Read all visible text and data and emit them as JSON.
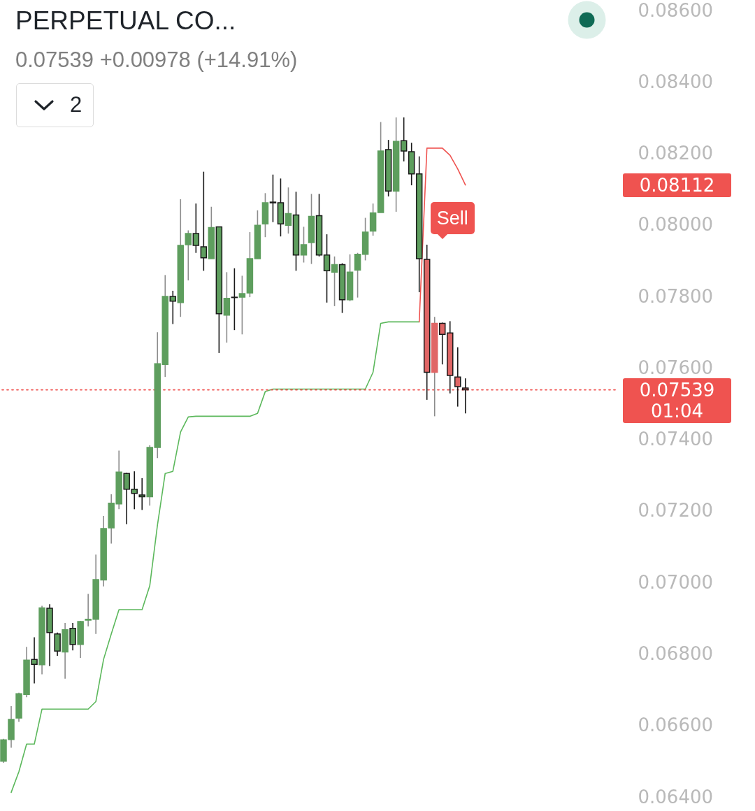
{
  "chart_data": {
    "type": "candlestick",
    "title": "PERPETUAL CO...",
    "subtitle": "0.07539 +0.00978 (+14.91%)",
    "categories": [
      null,
      null,
      null,
      null,
      null,
      null,
      null,
      null,
      null,
      null,
      null,
      null,
      null,
      null,
      null,
      null,
      null,
      null,
      null,
      null,
      null,
      null,
      null,
      null,
      null,
      null,
      null,
      null,
      null,
      null,
      null,
      null,
      null,
      null,
      null,
      null,
      null,
      null,
      null,
      null,
      null,
      null,
      null,
      null,
      null,
      null,
      null,
      null,
      null,
      null,
      null,
      null,
      null,
      null,
      null,
      null,
      null,
      null,
      null,
      null,
      null,
      null,
      null,
      null,
      null,
      null,
      null,
      null,
      null,
      null,
      null,
      null,
      null,
      null,
      null,
      null,
      null,
      null,
      null,
      null
    ],
    "ohlc": [
      [
        0.065,
        0.06563,
        0.06496,
        0.0656
      ],
      [
        0.06561,
        0.06654,
        0.06538,
        0.06617
      ],
      [
        0.06621,
        0.06692,
        0.0661,
        0.06689
      ],
      [
        0.06687,
        0.0682,
        0.06679,
        0.06783
      ],
      [
        0.06785,
        0.06847,
        0.06718,
        0.06771
      ],
      [
        0.0677,
        0.06935,
        0.06743,
        0.06929
      ],
      [
        0.06928,
        0.06939,
        0.06766,
        0.0686
      ],
      [
        0.06856,
        0.0686,
        0.06795,
        0.06808
      ],
      [
        0.06806,
        0.06887,
        0.06731,
        0.06868
      ],
      [
        0.06872,
        0.06887,
        0.0681,
        0.06827
      ],
      [
        0.06827,
        0.06893,
        0.06789,
        0.06891
      ],
      [
        0.06895,
        0.06968,
        0.06877,
        0.06897
      ],
      [
        0.06897,
        0.07078,
        0.06856,
        0.07008
      ],
      [
        0.07007,
        0.07186,
        0.06989,
        0.07151
      ],
      [
        0.07153,
        0.07247,
        0.07109,
        0.07222
      ],
      [
        0.0722,
        0.07369,
        0.07205,
        0.07309
      ],
      [
        0.07305,
        0.07307,
        0.07163,
        0.07261
      ],
      [
        0.07261,
        0.07311,
        0.07205,
        0.07249
      ],
      [
        0.07245,
        0.07292,
        0.07203,
        0.0724
      ],
      [
        0.0724,
        0.07384,
        0.07215,
        0.07378
      ],
      [
        0.07378,
        0.077,
        0.07348,
        0.07612
      ],
      [
        0.0761,
        0.0786,
        0.07575,
        0.078
      ],
      [
        0.078,
        0.07816,
        0.07723,
        0.07787
      ],
      [
        0.07783,
        0.08072,
        0.07743,
        0.07943
      ],
      [
        0.07945,
        0.07985,
        0.07845,
        0.07976
      ],
      [
        0.07976,
        0.0806,
        0.07922,
        0.07943
      ],
      [
        0.07939,
        0.08149,
        0.07872,
        0.07908
      ],
      [
        0.07906,
        0.08051,
        0.07906,
        0.07993
      ],
      [
        0.07995,
        0.07995,
        0.07642,
        0.07752
      ],
      [
        0.07748,
        0.07868,
        0.07671,
        0.07795
      ],
      [
        0.07798,
        0.07879,
        0.07706,
        0.07797
      ],
      [
        0.07798,
        0.07858,
        0.07694,
        0.07808
      ],
      [
        0.0781,
        0.0798,
        0.07798,
        0.07906
      ],
      [
        0.07906,
        0.08041,
        0.07906,
        0.07999
      ],
      [
        0.08003,
        0.08089,
        0.07966,
        0.08062
      ],
      [
        0.08064,
        0.08141,
        0.08008,
        0.08062
      ],
      [
        0.08062,
        0.0813,
        0.07968,
        0.08003
      ],
      [
        0.07999,
        0.08105,
        0.07976,
        0.08032
      ],
      [
        0.08028,
        0.08093,
        0.07872,
        0.07916
      ],
      [
        0.07916,
        0.07995,
        0.07895,
        0.07945
      ],
      [
        0.07951,
        0.08087,
        0.07891,
        0.08024
      ],
      [
        0.08026,
        0.08087,
        0.07912,
        0.07916
      ],
      [
        0.07916,
        0.07974,
        0.07783,
        0.07872
      ],
      [
        0.07868,
        0.07912,
        0.07773,
        0.07889
      ],
      [
        0.07889,
        0.07893,
        0.07754,
        0.07791
      ],
      [
        0.07791,
        0.07918,
        0.07787,
        0.07868
      ],
      [
        0.07874,
        0.07922,
        0.07797,
        0.07918
      ],
      [
        0.07918,
        0.0802,
        0.07901,
        0.0798
      ],
      [
        0.07983,
        0.0806,
        0.0797,
        0.08034
      ],
      [
        0.08035,
        0.08288,
        0.08035,
        0.08207
      ],
      [
        0.08211,
        0.08238,
        0.0808,
        0.08095
      ],
      [
        0.08095,
        0.08301,
        0.08037,
        0.08234
      ],
      [
        0.08236,
        0.08301,
        0.08178,
        0.08207
      ],
      [
        0.08205,
        0.0823,
        0.08111,
        0.08143
      ],
      [
        0.08143,
        0.08192,
        0.07812,
        0.07906
      ],
      [
        0.07904,
        0.07945,
        0.07511,
        0.07588
      ],
      [
        0.07588,
        0.07743,
        0.07465,
        0.07725
      ],
      [
        0.07725,
        0.07727,
        0.0761,
        0.07694
      ],
      [
        0.07698,
        0.07731,
        0.07529,
        0.07579
      ],
      [
        0.07575,
        0.07658,
        0.07492,
        0.07548
      ],
      [
        0.07544,
        0.07571,
        0.07473,
        0.07539
      ],
      null,
      null,
      null,
      null,
      null,
      null,
      null,
      null,
      null,
      null,
      null,
      null,
      null,
      null,
      null,
      null,
      null,
      null,
      null
    ],
    "colors": [
      "#5e9e5e",
      "#5e9e5e",
      "#5e9e5e",
      "#5e9e5e",
      "#5e9e5e",
      "#5e9e5e",
      "#5e9e5e",
      "#5e9e5e",
      "#5e9e5e",
      "#5e9e5e",
      "#5e9e5e",
      "#5e9e5e",
      "#5e9e5e",
      "#5e9e5e",
      "#5e9e5e",
      "#5e9e5e",
      "#5e9e5e",
      "#5e9e5e",
      "#5e9e5e",
      "#5e9e5e",
      "#5e9e5e",
      "#5e9e5e",
      "#5e9e5e",
      "#5e9e5e",
      "#5e9e5e",
      "#5e9e5e",
      "#5e9e5e",
      "#5e9e5e",
      "#5e9e5e",
      "#5e9e5e",
      "#5e9e5e",
      "#5e9e5e",
      "#5e9e5e",
      "#5e9e5e",
      "#5e9e5e",
      "#5e9e5e",
      "#5e9e5e",
      "#5e9e5e",
      "#5e9e5e",
      "#5e9e5e",
      "#5e9e5e",
      "#5e9e5e",
      "#5e9e5e",
      "#5e9e5e",
      "#5e9e5e",
      "#5e9e5e",
      "#5e9e5e",
      "#5e9e5e",
      "#5e9e5e",
      "#5e9e5e",
      "#5e9e5e",
      "#5e9e5e",
      "#5e9e5e",
      "#5e9e5e",
      "#5e9e5e",
      "#e06666",
      "#e06666",
      "#e06666",
      "#e06666",
      "#e06666",
      "#e06666",
      null,
      null,
      null,
      null,
      null,
      null,
      null,
      null,
      null,
      null,
      null,
      null,
      null,
      null,
      null,
      null,
      null,
      null,
      null
    ],
    "series": [
      {
        "type": "line",
        "color": "#5cb85c",
        "values": [
          null,
          0.06413,
          0.06471,
          0.06548,
          0.06548,
          0.06646,
          0.06646,
          0.06646,
          0.06646,
          0.06646,
          0.06646,
          0.06646,
          0.06667,
          0.06785,
          0.06856,
          0.06924,
          0.06924,
          0.06924,
          0.06924,
          0.06991,
          0.07161,
          0.07305,
          0.07311,
          0.07421,
          0.07463,
          0.07465,
          0.07465,
          0.07465,
          0.07465,
          0.07465,
          0.07465,
          0.07465,
          0.07465,
          0.07473,
          0.07534,
          0.07541,
          0.07541,
          0.07541,
          0.07541,
          0.07541,
          0.07541,
          0.07541,
          0.07541,
          0.07541,
          0.07541,
          0.07541,
          0.07541,
          0.07541,
          0.07588,
          0.07725,
          0.07729,
          0.07729,
          0.07729,
          0.07729,
          0.07729,
          null,
          null,
          null,
          null,
          null,
          null,
          null,
          null,
          null,
          null,
          null,
          null,
          null,
          null,
          null,
          null,
          null,
          null,
          null,
          null,
          null,
          null,
          null,
          null,
          null
        ]
      },
      {
        "type": "line",
        "color": "#ef5350",
        "values": [
          null,
          null,
          null,
          null,
          null,
          null,
          null,
          null,
          null,
          null,
          null,
          null,
          null,
          null,
          null,
          null,
          null,
          null,
          null,
          null,
          null,
          null,
          null,
          null,
          null,
          null,
          null,
          null,
          null,
          null,
          null,
          null,
          null,
          null,
          null,
          null,
          null,
          null,
          null,
          null,
          null,
          null,
          null,
          null,
          null,
          null,
          null,
          null,
          null,
          null,
          null,
          null,
          null,
          null,
          0.07729,
          0.08215,
          0.08215,
          0.08215,
          0.08195,
          0.08157,
          0.08112,
          null,
          null,
          null,
          null,
          null,
          null,
          null,
          null,
          null,
          null,
          null,
          null,
          null,
          null,
          null,
          null,
          null,
          null,
          null
        ]
      }
    ],
    "ylim": [
      0.064,
      0.086
    ],
    "yticks": [
      {
        "value": 0.064,
        "label": "0.06400"
      },
      {
        "value": 0.066,
        "label": "0.06600"
      },
      {
        "value": 0.068,
        "label": "0.06800"
      },
      {
        "value": 0.07,
        "label": "0.07000"
      },
      {
        "value": 0.072,
        "label": "0.07200"
      },
      {
        "value": 0.074,
        "label": "0.07400"
      },
      {
        "value": 0.076,
        "label": "0.07600"
      },
      {
        "value": 0.078,
        "label": "0.07800"
      },
      {
        "value": 0.08,
        "label": "0.08000"
      },
      {
        "value": 0.082,
        "label": "0.08200"
      },
      {
        "value": 0.084,
        "label": "0.08400"
      },
      {
        "value": 0.086,
        "label": "0.08600"
      }
    ],
    "ref_lines": [
      {
        "axis": "y",
        "value": 0.07539,
        "label": "0.07539",
        "color": "#ef5350",
        "line_style": "dotted"
      }
    ],
    "annotations": [
      "2",
      "Sell",
      "0.08112",
      "01:04"
    ],
    "tick_labels": "y"
  }
}
